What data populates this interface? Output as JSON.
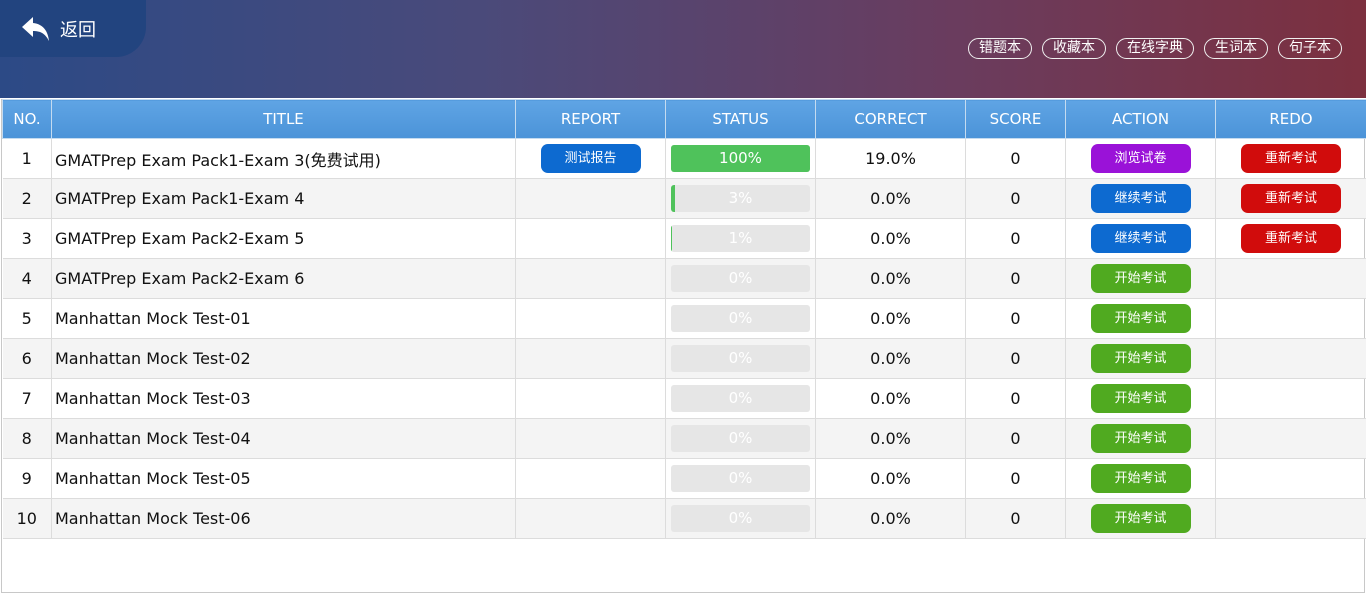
{
  "header": {
    "back_label": "返回",
    "tools": [
      "错题本",
      "收藏本",
      "在线字典",
      "生词本",
      "句子本"
    ]
  },
  "columns": [
    "NO.",
    "TITLE",
    "REPORT",
    "STATUS",
    "CORRECT",
    "SCORE",
    "ACTION",
    "REDO"
  ],
  "colors": {
    "report": "#0d6ad0",
    "action_view": "#9a12d8",
    "action_continue": "#0d6ad0",
    "action_start": "#50aa20",
    "redo": "#d10c0c",
    "progress": "#4fc25b"
  },
  "rows": [
    {
      "no": "1",
      "title": "GMATPrep Exam Pack1-Exam 3(免费试用)",
      "report": "测试报告",
      "progress": 100,
      "status": "100%",
      "correct": "19.0%",
      "score": "0",
      "action": "浏览试卷",
      "action_type": "view",
      "redo": "重新考试"
    },
    {
      "no": "2",
      "title": "GMATPrep Exam Pack1-Exam 4",
      "report": "",
      "progress": 3,
      "status": "3%",
      "correct": "0.0%",
      "score": "0",
      "action": "继续考试",
      "action_type": "continue",
      "redo": "重新考试"
    },
    {
      "no": "3",
      "title": "GMATPrep Exam Pack2-Exam 5",
      "report": "",
      "progress": 1,
      "status": "1%",
      "correct": "0.0%",
      "score": "0",
      "action": "继续考试",
      "action_type": "continue",
      "redo": "重新考试"
    },
    {
      "no": "4",
      "title": "GMATPrep Exam Pack2-Exam 6",
      "report": "",
      "progress": 0,
      "status": "0%",
      "correct": "0.0%",
      "score": "0",
      "action": "开始考试",
      "action_type": "start",
      "redo": ""
    },
    {
      "no": "5",
      "title": "Manhattan Mock Test-01",
      "report": "",
      "progress": 0,
      "status": "0%",
      "correct": "0.0%",
      "score": "0",
      "action": "开始考试",
      "action_type": "start",
      "redo": ""
    },
    {
      "no": "6",
      "title": "Manhattan Mock Test-02",
      "report": "",
      "progress": 0,
      "status": "0%",
      "correct": "0.0%",
      "score": "0",
      "action": "开始考试",
      "action_type": "start",
      "redo": ""
    },
    {
      "no": "7",
      "title": "Manhattan Mock Test-03",
      "report": "",
      "progress": 0,
      "status": "0%",
      "correct": "0.0%",
      "score": "0",
      "action": "开始考试",
      "action_type": "start",
      "redo": ""
    },
    {
      "no": "8",
      "title": "Manhattan Mock Test-04",
      "report": "",
      "progress": 0,
      "status": "0%",
      "correct": "0.0%",
      "score": "0",
      "action": "开始考试",
      "action_type": "start",
      "redo": ""
    },
    {
      "no": "9",
      "title": "Manhattan Mock Test-05",
      "report": "",
      "progress": 0,
      "status": "0%",
      "correct": "0.0%",
      "score": "0",
      "action": "开始考试",
      "action_type": "start",
      "redo": ""
    },
    {
      "no": "10",
      "title": "Manhattan Mock Test-06",
      "report": "",
      "progress": 0,
      "status": "0%",
      "correct": "0.0%",
      "score": "0",
      "action": "开始考试",
      "action_type": "start",
      "redo": ""
    }
  ]
}
